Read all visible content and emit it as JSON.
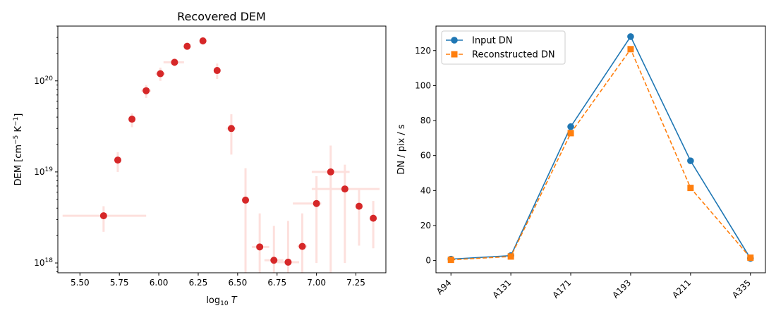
{
  "chart_data": [
    {
      "type": "scatter",
      "title": "Recovered DEM",
      "xlabel": "log10 T",
      "ylabel": "DEM [cm^-5 K^-1]",
      "yscale": "log",
      "xlim": [
        5.36,
        7.44
      ],
      "ylim": [
        7.8e+17,
        4e+20
      ],
      "x_ticks": [
        5.5,
        5.75,
        6.0,
        6.25,
        6.5,
        6.75,
        7.0,
        7.25
      ],
      "x_tick_labels": [
        "5.50",
        "5.75",
        "6.00",
        "6.25",
        "6.50",
        "6.75",
        "7.00",
        "7.25"
      ],
      "y_major_ticks": [
        1e+18,
        1e+19,
        1e+20
      ],
      "y_tick_labels": [
        "10^18",
        "10^19",
        "10^20"
      ],
      "grid": false,
      "marker_color": "#d62728",
      "errorbar_color": "#fde0dd",
      "points": [
        {
          "x": 5.65,
          "y": 3.3e+18,
          "xerr": [
            5.39,
            5.92
          ],
          "yerr": [
            2.2e+18,
            4.2e+18
          ]
        },
        {
          "x": 5.74,
          "y": 1.35e+19,
          "xerr": [
            5.72,
            5.76
          ],
          "yerr": [
            1e+19,
            1.65e+19
          ]
        },
        {
          "x": 5.83,
          "y": 3.8e+19,
          "xerr": [
            5.81,
            5.85
          ],
          "yerr": [
            3.1e+19,
            4.4e+19
          ]
        },
        {
          "x": 5.92,
          "y": 7.8e+19,
          "xerr": [
            5.89,
            5.95
          ],
          "yerr": [
            6.5e+19,
            9e+19
          ]
        },
        {
          "x": 6.01,
          "y": 1.2e+20,
          "xerr": [
            5.98,
            6.04
          ],
          "yerr": [
            1e+20,
            1.4e+20
          ]
        },
        {
          "x": 6.1,
          "y": 1.6e+20,
          "xerr": [
            6.03,
            6.16
          ],
          "yerr": [
            1.45e+20,
            1.75e+20
          ]
        },
        {
          "x": 6.18,
          "y": 2.4e+20,
          "xerr": [
            6.16,
            6.2
          ],
          "yerr": [
            2.2e+20,
            2.6e+20
          ]
        },
        {
          "x": 6.28,
          "y": 2.75e+20,
          "xerr": [
            6.26,
            6.3
          ],
          "yerr": [
            2.5e+20,
            3e+20
          ]
        },
        {
          "x": 6.37,
          "y": 1.3e+20,
          "xerr": [
            6.35,
            6.39
          ],
          "yerr": [
            1.05e+20,
            1.55e+20
          ]
        },
        {
          "x": 6.46,
          "y": 3e+19,
          "xerr": [
            6.43,
            6.49
          ],
          "yerr": [
            1.55e+19,
            4.3e+19
          ]
        },
        {
          "x": 6.55,
          "y": 4.9e+18,
          "xerr": [
            6.54,
            6.56
          ],
          "yerr": [
            7.8e+17,
            1.1e+19
          ]
        },
        {
          "x": 6.64,
          "y": 1.5e+18,
          "xerr": [
            6.59,
            6.7
          ],
          "yerr": [
            7.8e+17,
            3.5e+18
          ]
        },
        {
          "x": 6.73,
          "y": 1.07e+18,
          "xerr": [
            6.67,
            6.79
          ],
          "yerr": [
            7.8e+17,
            2.55e+18
          ]
        },
        {
          "x": 6.82,
          "y": 1.02e+18,
          "xerr": [
            6.75,
            6.89
          ],
          "yerr": [
            7.8e+17,
            2.9e+18
          ]
        },
        {
          "x": 6.91,
          "y": 1.52e+18,
          "xerr": [
            6.88,
            6.94
          ],
          "yerr": [
            7.8e+17,
            3.5e+18
          ]
        },
        {
          "x": 7.0,
          "y": 4.5e+18,
          "xerr": [
            6.85,
            7.03
          ],
          "yerr": [
            1e+18,
            9e+18
          ]
        },
        {
          "x": 7.09,
          "y": 1e+19,
          "xerr": [
            6.97,
            7.21
          ],
          "yerr": [
            7.8e+17,
            1.95e+19
          ]
        },
        {
          "x": 7.18,
          "y": 6.5e+18,
          "xerr": [
            6.97,
            7.4
          ],
          "yerr": [
            1e+18,
            1.2e+19
          ]
        },
        {
          "x": 7.27,
          "y": 4.2e+18,
          "xerr": [
            7.25,
            7.29
          ],
          "yerr": [
            1.55e+18,
            6.4e+18
          ]
        },
        {
          "x": 7.36,
          "y": 3.1e+18,
          "xerr": [
            7.34,
            7.38
          ],
          "yerr": [
            1.45e+18,
            4.8e+18
          ]
        }
      ]
    },
    {
      "type": "line",
      "title": "",
      "xlabel": "",
      "ylabel": "DN / pix / s",
      "categories": [
        "A94",
        "A131",
        "A171",
        "A193",
        "A211",
        "A335"
      ],
      "ylim": [
        -7,
        134
      ],
      "y_ticks": [
        0,
        20,
        40,
        60,
        80,
        100,
        120
      ],
      "grid": false,
      "legend_position": "upper-left",
      "series": [
        {
          "name": "Input DN",
          "color": "#1f77b4",
          "marker": "circle",
          "linestyle": "solid",
          "values": [
            0.8,
            2.8,
            76.5,
            128.0,
            57.0,
            1.2
          ]
        },
        {
          "name": "Reconstructed DN",
          "color": "#ff7f0e",
          "marker": "square",
          "linestyle": "dashed",
          "values": [
            0.4,
            2.3,
            72.8,
            120.8,
            41.5,
            1.6
          ]
        }
      ]
    }
  ]
}
